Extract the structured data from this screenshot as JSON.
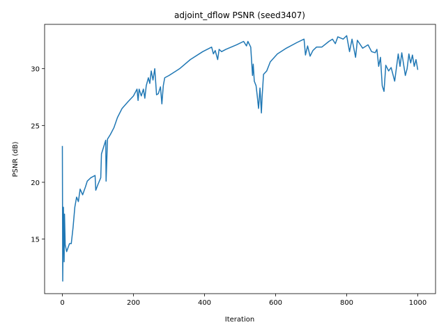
{
  "chart_data": {
    "type": "line",
    "title": "adjoint_dflow PSNR (seed3407)",
    "x_label": "Iteration",
    "y_label": "PSNR (dB)",
    "x": [
      0,
      1,
      3,
      5,
      6,
      8,
      12,
      20,
      25,
      30,
      35,
      40,
      45,
      50,
      57,
      65,
      70,
      80,
      92,
      94,
      100,
      108,
      110,
      117,
      122,
      123,
      127,
      135,
      145,
      155,
      168,
      185,
      200,
      210,
      213,
      216,
      222,
      228,
      232,
      236,
      242,
      246,
      250,
      255,
      260,
      265,
      270,
      276,
      280,
      284,
      288,
      300,
      330,
      360,
      395,
      420,
      425,
      430,
      437,
      441,
      448,
      460,
      490,
      510,
      518,
      522,
      530,
      535,
      537,
      540,
      545,
      548,
      552,
      556,
      560,
      562,
      566,
      575,
      585,
      605,
      630,
      660,
      680,
      684,
      690,
      697,
      705,
      715,
      730,
      750,
      760,
      768,
      775,
      790,
      800,
      808,
      815,
      825,
      830,
      845,
      860,
      870,
      880,
      885,
      890,
      895,
      900,
      905,
      910,
      918,
      925,
      935,
      945,
      950,
      955,
      965,
      970,
      975,
      980,
      985,
      990,
      995,
      1000
    ],
    "series": [
      {
        "name": "PSNR",
        "color": "#1f77b4",
        "values": [
          23.2,
          11.3,
          17.8,
          13.0,
          17.2,
          14.5,
          13.9,
          14.6,
          14.6,
          16.0,
          17.8,
          18.7,
          18.3,
          19.4,
          18.9,
          19.6,
          20.1,
          20.4,
          20.6,
          19.3,
          19.8,
          20.4,
          22.5,
          23.2,
          23.7,
          20.1,
          23.8,
          24.2,
          24.8,
          25.7,
          26.5,
          27.1,
          27.6,
          28.2,
          27.2,
          28.2,
          27.6,
          28.2,
          27.4,
          28.5,
          29.2,
          28.7,
          29.8,
          29.0,
          30.0,
          27.7,
          27.8,
          28.4,
          26.9,
          28.5,
          29.2,
          29.4,
          30.0,
          30.8,
          31.5,
          31.9,
          31.3,
          31.6,
          30.8,
          31.7,
          31.5,
          31.7,
          32.1,
          32.4,
          32.0,
          32.4,
          31.9,
          29.4,
          30.4,
          28.9,
          28.5,
          27.7,
          26.5,
          28.3,
          26.1,
          27.5,
          29.5,
          29.8,
          30.6,
          31.3,
          31.8,
          32.3,
          32.6,
          31.2,
          32.0,
          31.1,
          31.6,
          31.9,
          31.9,
          32.4,
          32.6,
          32.2,
          32.8,
          32.6,
          32.9,
          31.5,
          32.6,
          31.0,
          32.5,
          31.8,
          32.1,
          31.5,
          31.4,
          31.7,
          30.2,
          31.0,
          28.5,
          28.0,
          30.3,
          29.8,
          30.1,
          28.9,
          31.3,
          30.2,
          31.4,
          29.4,
          30.0,
          31.3,
          30.5,
          31.2,
          30.2,
          30.8,
          29.9
        ]
      }
    ],
    "xlim": [
      -50,
      1050
    ],
    "ylim": [
      10.2,
      33.9
    ],
    "xticks": [
      0,
      200,
      400,
      600,
      800,
      1000
    ],
    "yticks": [
      15,
      20,
      25,
      30
    ]
  }
}
